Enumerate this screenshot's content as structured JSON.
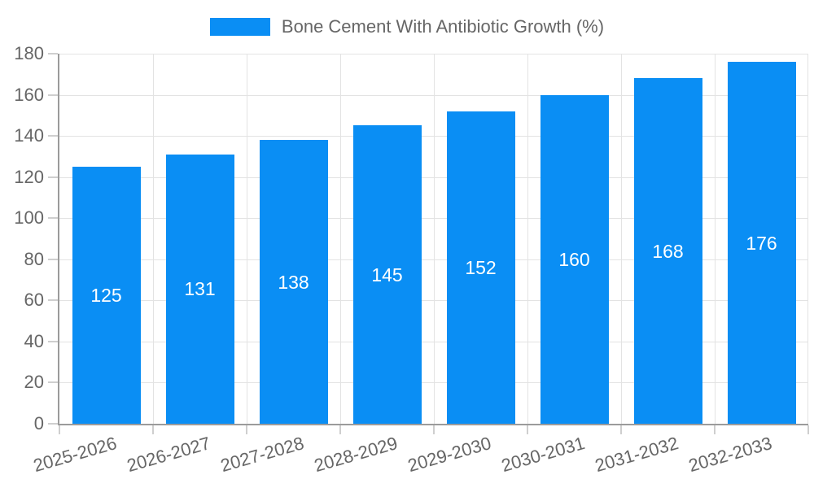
{
  "legend": {
    "label": "Bone Cement With Antibiotic Growth (%)"
  },
  "colors": {
    "bar": "#0A8EF4",
    "grid": "#e3e3e3",
    "axis": "#9b9b9b",
    "tick": "#cfcfcf",
    "tick_label": "#666666",
    "value_label": "#ffffff",
    "legend_text": "#666666",
    "background": "#ffffff"
  },
  "chart_data": {
    "type": "bar",
    "title": "Bone Cement With Antibiotic Growth (%)",
    "series_name": "Bone Cement With Antibiotic Growth (%)",
    "categories": [
      "2025-2026",
      "2026-2027",
      "2027-2028",
      "2028-2029",
      "2029-2030",
      "2030-2031",
      "2031-2032",
      "2032-2033"
    ],
    "values": [
      125,
      131,
      138,
      145,
      152,
      160,
      168,
      176
    ],
    "xlabel": "",
    "ylabel": "",
    "ylim": [
      0,
      180
    ],
    "ytick_step": 20,
    "yticks": [
      0,
      20,
      40,
      60,
      80,
      100,
      120,
      140,
      160,
      180
    ],
    "grid": true,
    "legend_position": "top",
    "value_labels": "inside-center",
    "x_label_rotation_deg": -16
  }
}
